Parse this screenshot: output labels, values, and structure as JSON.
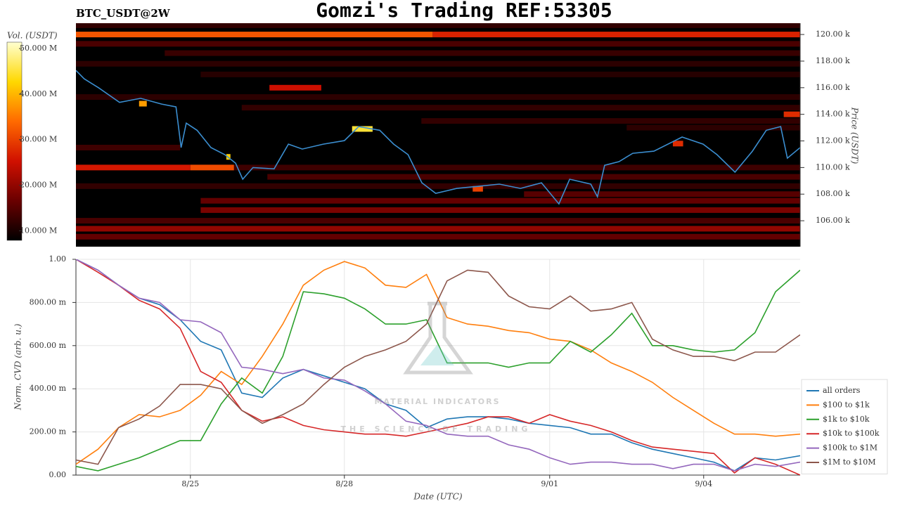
{
  "chart_data": [
    {
      "type": "heatmap",
      "title": "Gomzi's Trading REF:53305",
      "subtitle": "BTC_USDT@2W",
      "ylabel": "Price (USDT)",
      "xlim": [
        22.77,
        36.88
      ],
      "ylim": [
        104050,
        120850
      ],
      "yticks": [
        {
          "value": 106000,
          "label": "106.00 k"
        },
        {
          "value": 108000,
          "label": "108.00 k"
        },
        {
          "value": 110000,
          "label": "110.00 k"
        },
        {
          "value": 112000,
          "label": "112.00 k"
        },
        {
          "value": 114000,
          "label": "114.00 k"
        },
        {
          "value": 116000,
          "label": "116.00 k"
        },
        {
          "value": 118000,
          "label": "118.00 k"
        },
        {
          "value": 120000,
          "label": "120.00 k"
        }
      ],
      "colorbar": {
        "label": "Vol. (USDT)",
        "lim": [
          7900000,
          51400000
        ],
        "ticks": [
          {
            "value": 10000000,
            "label": "10.000 M"
          },
          {
            "value": 20000000,
            "label": "20.000 M"
          },
          {
            "value": 30000000,
            "label": "30.000 M"
          },
          {
            "value": 40000000,
            "label": "40.000 M"
          },
          {
            "value": 50000000,
            "label": "50.000 M"
          }
        ],
        "colorscale": [
          "#000000",
          "#6a0000",
          "#d01000",
          "#ff6a00",
          "#ffd800",
          "#ffffd0"
        ]
      },
      "bands": [
        {
          "price": 120000,
          "x": [
            22.77,
            29.72
          ],
          "value": 32000000
        },
        {
          "price": 120000,
          "x": [
            29.72,
            36.88
          ],
          "value": 27000000
        },
        {
          "price": 120700,
          "x": [
            22.77,
            36.88
          ],
          "value": 12000000
        },
        {
          "price": 119300,
          "x": [
            22.77,
            36.88
          ],
          "value": 14000000
        },
        {
          "price": 118600,
          "x": [
            24.5,
            36.88
          ],
          "value": 12500000
        },
        {
          "price": 117800,
          "x": [
            22.77,
            36.88
          ],
          "value": 11500000
        },
        {
          "price": 117000,
          "x": [
            25.2,
            36.88
          ],
          "value": 11000000
        },
        {
          "price": 116000,
          "x": [
            26.54,
            27.55
          ],
          "value": 25000000
        },
        {
          "price": 115300,
          "x": [
            22.77,
            36.88
          ],
          "value": 11500000
        },
        {
          "price": 114500,
          "x": [
            26.0,
            36.88
          ],
          "value": 12000000
        },
        {
          "price": 114000,
          "x": [
            36.56,
            36.88
          ],
          "value": 28000000
        },
        {
          "price": 113500,
          "x": [
            29.5,
            36.88
          ],
          "value": 12000000
        },
        {
          "price": 113000,
          "x": [
            33.5,
            36.88
          ],
          "value": 11500000
        },
        {
          "price": 112900,
          "x": [
            28.15,
            28.55
          ],
          "value": 45000000
        },
        {
          "price": 111500,
          "x": [
            22.77,
            24.8
          ],
          "value": 13000000
        },
        {
          "price": 110000,
          "x": [
            22.77,
            25.0
          ],
          "value": 26000000
        },
        {
          "price": 110000,
          "x": [
            25.0,
            25.85
          ],
          "value": 31000000
        },
        {
          "price": 110800,
          "x": [
            25.7,
            25.78
          ],
          "value": 42000000
        },
        {
          "price": 110000,
          "x": [
            25.85,
            36.88
          ],
          "value": 13000000
        },
        {
          "price": 109300,
          "x": [
            26.5,
            36.88
          ],
          "value": 14000000
        },
        {
          "price": 108600,
          "x": [
            22.77,
            36.88
          ],
          "value": 12000000
        },
        {
          "price": 108000,
          "x": [
            31.5,
            36.88
          ],
          "value": 15000000
        },
        {
          "price": 107500,
          "x": [
            25.2,
            36.88
          ],
          "value": 16000000
        },
        {
          "price": 106800,
          "x": [
            25.2,
            36.88
          ],
          "value": 18000000
        },
        {
          "price": 106000,
          "x": [
            22.77,
            36.88
          ],
          "value": 14000000
        },
        {
          "price": 105400,
          "x": [
            22.77,
            36.88
          ],
          "value": 20000000
        },
        {
          "price": 104800,
          "x": [
            22.77,
            36.88
          ],
          "value": 16000000
        },
        {
          "price": 114800,
          "x": [
            24.0,
            24.15
          ],
          "value": 38000000
        },
        {
          "price": 108400,
          "x": [
            30.5,
            30.7
          ],
          "value": 30000000
        },
        {
          "price": 111800,
          "x": [
            34.4,
            34.6
          ],
          "value": 28000000
        }
      ],
      "line": {
        "color": "#3b8ed0",
        "x": [
          22.77,
          22.93,
          23.21,
          23.62,
          24.03,
          24.44,
          24.72,
          24.82,
          24.92,
          25.13,
          25.4,
          25.67,
          25.88,
          26.02,
          26.22,
          26.63,
          26.91,
          27.18,
          27.59,
          28.0,
          28.28,
          28.69,
          28.96,
          29.24,
          29.51,
          29.78,
          30.19,
          30.61,
          31.02,
          31.43,
          31.84,
          32.18,
          32.39,
          32.8,
          32.93,
          33.07,
          33.35,
          33.62,
          34.03,
          34.58,
          34.99,
          35.26,
          35.61,
          35.95,
          36.22,
          36.5,
          36.63,
          36.88
        ],
        "values": [
          117300,
          116670,
          116000,
          114900,
          115200,
          114770,
          114560,
          111500,
          113340,
          112800,
          111500,
          110970,
          110330,
          109120,
          110000,
          109900,
          111760,
          111390,
          111760,
          112020,
          113080,
          112800,
          111760,
          110970,
          108850,
          108060,
          108430,
          108590,
          108750,
          108430,
          108850,
          107270,
          109120,
          108750,
          107800,
          110170,
          110440,
          111070,
          111230,
          112290,
          111760,
          110970,
          109650,
          111230,
          112800,
          113080,
          110700,
          111500
        ]
      }
    },
    {
      "type": "line",
      "xlabel": "Date (UTC)",
      "ylabel": "Norm. CVD (arb. u.)",
      "xlim": [
        22.77,
        36.88
      ],
      "xticks": [
        {
          "value": 25,
          "label": "8/25"
        },
        {
          "value": 28,
          "label": "8/28"
        },
        {
          "value": 32,
          "label": "9/01"
        },
        {
          "value": 35,
          "label": "9/04"
        }
      ],
      "ylim": [
        0,
        1
      ],
      "yticks": [
        {
          "value": 0,
          "label": "0.00"
        },
        {
          "value": 0.2,
          "label": "200.00 m"
        },
        {
          "value": 0.4,
          "label": "400.00 m"
        },
        {
          "value": 0.6,
          "label": "600.00 m"
        },
        {
          "value": 0.8,
          "label": "800.00 m"
        },
        {
          "value": 1,
          "label": "1.00"
        }
      ],
      "grid": true,
      "legend": "right",
      "watermark": {
        "title": "MATERIAL INDICATORS",
        "subtitle": "THE SCIENCE OF TRADING"
      },
      "x": [
        22.77,
        23.2,
        23.6,
        24.0,
        24.4,
        24.8,
        25.2,
        25.6,
        26.0,
        26.4,
        26.8,
        27.2,
        27.6,
        28.0,
        28.4,
        28.8,
        29.2,
        29.6,
        30.0,
        30.4,
        30.8,
        31.2,
        31.6,
        32.0,
        32.4,
        32.8,
        33.2,
        33.6,
        34.0,
        34.4,
        34.8,
        35.2,
        35.6,
        36.0,
        36.4,
        36.88
      ],
      "series": [
        {
          "name": "all orders",
          "color": "#1f77b4",
          "values": [
            1.0,
            0.95,
            0.88,
            0.82,
            0.79,
            0.72,
            0.62,
            0.58,
            0.38,
            0.36,
            0.45,
            0.49,
            0.46,
            0.43,
            0.4,
            0.33,
            0.3,
            0.22,
            0.26,
            0.27,
            0.27,
            0.26,
            0.24,
            0.23,
            0.22,
            0.19,
            0.19,
            0.15,
            0.12,
            0.1,
            0.08,
            0.06,
            0.02,
            0.08,
            0.07,
            0.09
          ]
        },
        {
          "name": "$100 to $1k",
          "color": "#ff7f0e",
          "values": [
            0.05,
            0.12,
            0.22,
            0.28,
            0.27,
            0.3,
            0.37,
            0.48,
            0.42,
            0.55,
            0.7,
            0.88,
            0.95,
            0.99,
            0.96,
            0.88,
            0.87,
            0.93,
            0.73,
            0.7,
            0.69,
            0.67,
            0.66,
            0.63,
            0.62,
            0.58,
            0.52,
            0.48,
            0.43,
            0.36,
            0.3,
            0.24,
            0.19,
            0.19,
            0.18,
            0.19
          ]
        },
        {
          "name": "$1k to $10k",
          "color": "#2ca02c",
          "values": [
            0.04,
            0.02,
            0.05,
            0.08,
            0.12,
            0.16,
            0.16,
            0.33,
            0.45,
            0.38,
            0.55,
            0.85,
            0.84,
            0.82,
            0.77,
            0.7,
            0.7,
            0.72,
            0.52,
            0.52,
            0.52,
            0.5,
            0.52,
            0.52,
            0.62,
            0.57,
            0.65,
            0.75,
            0.6,
            0.6,
            0.58,
            0.57,
            0.58,
            0.66,
            0.85,
            0.95
          ]
        },
        {
          "name": "$10k to $100k",
          "color": "#d62728",
          "values": [
            1.0,
            0.94,
            0.88,
            0.81,
            0.77,
            0.68,
            0.48,
            0.43,
            0.3,
            0.25,
            0.27,
            0.23,
            0.21,
            0.2,
            0.19,
            0.19,
            0.18,
            0.2,
            0.22,
            0.24,
            0.27,
            0.27,
            0.24,
            0.28,
            0.25,
            0.23,
            0.2,
            0.16,
            0.13,
            0.12,
            0.11,
            0.1,
            0.01,
            0.08,
            0.05,
            0.0
          ]
        },
        {
          "name": "$100k to $1M",
          "color": "#9467bd",
          "values": [
            1.0,
            0.95,
            0.88,
            0.82,
            0.8,
            0.72,
            0.71,
            0.66,
            0.5,
            0.49,
            0.47,
            0.49,
            0.45,
            0.44,
            0.39,
            0.33,
            0.25,
            0.23,
            0.19,
            0.18,
            0.18,
            0.14,
            0.12,
            0.08,
            0.05,
            0.06,
            0.06,
            0.05,
            0.05,
            0.03,
            0.05,
            0.05,
            0.02,
            0.05,
            0.04,
            0.06
          ]
        },
        {
          "name": "$1M to $10M",
          "color": "#8c564b",
          "values": [
            0.07,
            0.05,
            0.22,
            0.26,
            0.32,
            0.42,
            0.42,
            0.4,
            0.3,
            0.24,
            0.28,
            0.33,
            0.42,
            0.5,
            0.55,
            0.58,
            0.62,
            0.7,
            0.9,
            0.95,
            0.94,
            0.83,
            0.78,
            0.77,
            0.83,
            0.76,
            0.77,
            0.8,
            0.63,
            0.58,
            0.55,
            0.55,
            0.53,
            0.57,
            0.57,
            0.65
          ]
        }
      ]
    }
  ]
}
